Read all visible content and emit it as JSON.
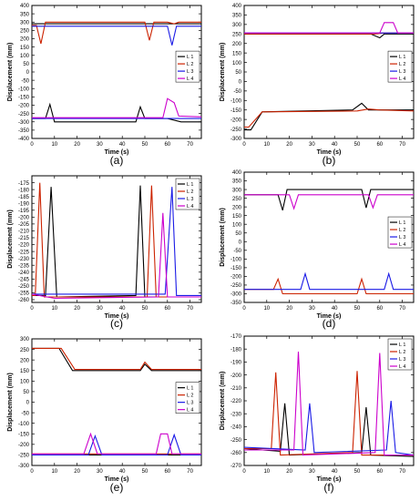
{
  "figure": {
    "legend_labels": [
      "L 1",
      "L 2",
      "L 3",
      "L 4"
    ],
    "series_colors": [
      "#000000",
      "#cc2200",
      "#1a1ae6",
      "#cc00cc"
    ]
  },
  "chart_data": [
    {
      "id": "a",
      "type": "line",
      "caption": "(a)",
      "xlabel": "Time (s)",
      "ylabel": "Displacement (mm)",
      "xlim": [
        0,
        75
      ],
      "ylim": [
        -400,
        400
      ],
      "xticks": [
        0,
        10,
        20,
        30,
        40,
        50,
        60,
        70
      ],
      "yticks": [
        400,
        350,
        300,
        250,
        200,
        150,
        100,
        50,
        0,
        -50,
        -100,
        -150,
        -200,
        -250,
        -300,
        -350,
        -400
      ],
      "legend_position": "right",
      "series": [
        {
          "name": "L 1",
          "values": [
            [
              0,
              290
            ],
            [
              75,
              290
            ],
            [
              null,
              null
            ],
            [
              0,
              -280
            ],
            [
              6,
              -280
            ],
            [
              8,
              -195
            ],
            [
              10,
              -300
            ],
            [
              46,
              -300
            ],
            [
              48,
              -210
            ],
            [
              50,
              -280
            ],
            [
              60,
              -280
            ],
            [
              66,
              -300
            ],
            [
              75,
              -300
            ]
          ]
        },
        {
          "name": "L 2",
          "values": [
            [
              0,
              280
            ],
            [
              2,
              280
            ],
            [
              4,
              170
            ],
            [
              6,
              300
            ],
            [
              48,
              300
            ],
            [
              50,
              300
            ],
            [
              52,
              190
            ],
            [
              54,
              300
            ],
            [
              60,
              300
            ],
            [
              63,
              290
            ],
            [
              65,
              300
            ],
            [
              75,
              300
            ]
          ]
        },
        {
          "name": "L 3",
          "values": [
            [
              0,
              275
            ],
            [
              60,
              275
            ],
            [
              62,
              160
            ],
            [
              64,
              275
            ],
            [
              75,
              275
            ],
            [
              null,
              null
            ],
            [
              0,
              -280
            ],
            [
              75,
              -280
            ]
          ]
        },
        {
          "name": "L 4",
          "values": [
            [
              0,
              -275
            ],
            [
              58,
              -275
            ],
            [
              60,
              -160
            ],
            [
              63,
              -185
            ],
            [
              65,
              -265
            ],
            [
              75,
              -270
            ]
          ]
        }
      ]
    },
    {
      "id": "b",
      "type": "line",
      "caption": "(b)",
      "xlabel": "Time (s)",
      "ylabel": "Displacement (mm)",
      "xlim": [
        0,
        75
      ],
      "ylim": [
        -300,
        400
      ],
      "xticks": [
        0,
        10,
        20,
        30,
        40,
        50,
        60,
        70
      ],
      "yticks": [
        400,
        350,
        300,
        250,
        200,
        150,
        100,
        50,
        0,
        -50,
        -100,
        -150,
        -200,
        -250,
        -300
      ],
      "legend_position": "right",
      "series": [
        {
          "name": "L 1",
          "values": [
            [
              0,
              -255
            ],
            [
              3,
              -255
            ],
            [
              8,
              -160
            ],
            [
              48,
              -150
            ],
            [
              52,
              -115
            ],
            [
              55,
              -150
            ],
            [
              75,
              -150
            ],
            [
              null,
              null
            ],
            [
              0,
              250
            ],
            [
              56,
              250
            ],
            [
              60,
              230
            ],
            [
              62,
              250
            ],
            [
              75,
              250
            ]
          ]
        },
        {
          "name": "L 2",
          "values": [
            [
              0,
              250
            ],
            [
              58,
              250
            ],
            [
              62,
              255
            ],
            [
              75,
              255
            ],
            [
              null,
              null
            ],
            [
              0,
              -240
            ],
            [
              2,
              -240
            ],
            [
              8,
              -160
            ],
            [
              50,
              -155
            ],
            [
              55,
              -145
            ],
            [
              60,
              -150
            ],
            [
              75,
              -155
            ]
          ]
        },
        {
          "name": "L 3",
          "values": [
            [
              0,
              255
            ],
            [
              75,
              255
            ]
          ]
        },
        {
          "name": "L 4",
          "values": [
            [
              0,
              255
            ],
            [
              60,
              255
            ],
            [
              62,
              310
            ],
            [
              66,
              310
            ],
            [
              68,
              255
            ],
            [
              75,
              255
            ]
          ]
        }
      ]
    },
    {
      "id": "c",
      "type": "line",
      "caption": "(c)",
      "xlabel": "Time (s)",
      "ylabel": "Displacement (mm)",
      "xlim": [
        0,
        75
      ],
      "ylim": [
        -262,
        -170
      ],
      "xticks": [
        0,
        10,
        20,
        30,
        40,
        50,
        60,
        70
      ],
      "yticks": [
        -175,
        -180,
        -185,
        -190,
        -195,
        -200,
        -205,
        -210,
        -215,
        -220,
        -225,
        -230,
        -235,
        -240,
        -245,
        -250,
        -255,
        -260
      ],
      "legend_position": "top-right",
      "series": [
        {
          "name": "L 1",
          "values": [
            [
              0,
              -257
            ],
            [
              6,
              -257
            ],
            [
              8.5,
              -178
            ],
            [
              11,
              -258
            ],
            [
              46,
              -257
            ],
            [
              48,
              -177
            ],
            [
              50,
              -258
            ],
            [
              75,
              -258
            ]
          ]
        },
        {
          "name": "L 2",
          "values": [
            [
              0,
              -257
            ],
            [
              1.5,
              -257
            ],
            [
              3.5,
              -175
            ],
            [
              5.5,
              -258
            ],
            [
              51,
              -258
            ],
            [
              53,
              -177
            ],
            [
              55,
              -258
            ],
            [
              75,
              -258
            ]
          ]
        },
        {
          "name": "L 3",
          "values": [
            [
              0,
              -256
            ],
            [
              59,
              -256
            ],
            [
              62,
              -178
            ],
            [
              64,
              -257
            ],
            [
              75,
              -257
            ]
          ]
        },
        {
          "name": "L 4",
          "values": [
            [
              0,
              -256
            ],
            [
              10,
              -259
            ],
            [
              56,
              -258
            ],
            [
              58,
              -197
            ],
            [
              60,
              -258
            ],
            [
              75,
              -258
            ]
          ]
        }
      ]
    },
    {
      "id": "d",
      "type": "line",
      "caption": "(d)",
      "xlabel": "Time (s)",
      "ylabel": "Displacement (mm)",
      "xlim": [
        0,
        75
      ],
      "ylim": [
        -350,
        400
      ],
      "xticks": [
        0,
        10,
        20,
        30,
        40,
        50,
        60,
        70
      ],
      "yticks": [
        400,
        350,
        300,
        250,
        200,
        150,
        100,
        50,
        0,
        -50,
        -100,
        -150,
        -200,
        -250,
        -300,
        -350
      ],
      "legend_position": "right",
      "series": [
        {
          "name": "L 1",
          "values": [
            [
              0,
              270
            ],
            [
              15,
              270
            ],
            [
              17,
              180
            ],
            [
              19,
              300
            ],
            [
              52,
              300
            ],
            [
              54,
              195
            ],
            [
              56,
              300
            ],
            [
              75,
              300
            ]
          ]
        },
        {
          "name": "L 2",
          "values": [
            [
              0,
              -275
            ],
            [
              13,
              -275
            ],
            [
              15,
              -215
            ],
            [
              17,
              -300
            ],
            [
              50,
              -300
            ],
            [
              52,
              -215
            ],
            [
              54,
              -300
            ],
            [
              75,
              -300
            ]
          ]
        },
        {
          "name": "L 3",
          "values": [
            [
              0,
              -275
            ],
            [
              25,
              -275
            ],
            [
              27,
              -185
            ],
            [
              29,
              -275
            ],
            [
              62,
              -275
            ],
            [
              64,
              -185
            ],
            [
              66,
              -275
            ],
            [
              75,
              -275
            ]
          ]
        },
        {
          "name": "L 4",
          "values": [
            [
              0,
              270
            ],
            [
              20,
              270
            ],
            [
              22,
              190
            ],
            [
              24,
              270
            ],
            [
              55,
              270
            ],
            [
              57,
              195
            ],
            [
              59,
              270
            ],
            [
              75,
              270
            ]
          ]
        }
      ]
    },
    {
      "id": "e",
      "type": "line",
      "caption": "(e)",
      "xlabel": "Time (s)",
      "ylabel": "Displacement (mm)",
      "xlim": [
        0,
        75
      ],
      "ylim": [
        -300,
        300
      ],
      "xticks": [
        0,
        10,
        20,
        30,
        40,
        50,
        60,
        70
      ],
      "yticks": [
        300,
        250,
        200,
        150,
        100,
        50,
        0,
        -50,
        -100,
        -150,
        -200,
        -250,
        -300
      ],
      "legend_position": "right",
      "series": [
        {
          "name": "L 1",
          "values": [
            [
              0,
              255
            ],
            [
              12,
              255
            ],
            [
              18,
              150
            ],
            [
              48,
              150
            ],
            [
              50,
              180
            ],
            [
              53,
              150
            ],
            [
              75,
              150
            ],
            [
              null,
              null
            ],
            [
              0,
              -250
            ],
            [
              75,
              -250
            ]
          ]
        },
        {
          "name": "L 2",
          "values": [
            [
              0,
              255
            ],
            [
              13,
              255
            ],
            [
              19,
              155
            ],
            [
              48,
              155
            ],
            [
              50,
              190
            ],
            [
              53,
              155
            ],
            [
              75,
              155
            ],
            [
              null,
              null
            ],
            [
              0,
              -245
            ],
            [
              75,
              -245
            ]
          ]
        },
        {
          "name": "L 3",
          "values": [
            [
              0,
              -250
            ],
            [
              25,
              -250
            ],
            [
              28,
              -160
            ],
            [
              31,
              -250
            ],
            [
              60,
              -250
            ],
            [
              63,
              -155
            ],
            [
              66,
              -250
            ],
            [
              75,
              -250
            ]
          ]
        },
        {
          "name": "L 4",
          "values": [
            [
              0,
              -245
            ],
            [
              23,
              -245
            ],
            [
              26,
              -150
            ],
            [
              29,
              -245
            ],
            [
              55,
              -245
            ],
            [
              57,
              -150
            ],
            [
              60,
              -150
            ],
            [
              62,
              -245
            ],
            [
              75,
              -245
            ]
          ]
        }
      ]
    },
    {
      "id": "f",
      "type": "line",
      "caption": "(f)",
      "xlabel": "Time (s)",
      "ylabel": "Displacement (mm)",
      "xlim": [
        0,
        75
      ],
      "ylim": [
        -270,
        -170
      ],
      "xticks": [
        0,
        10,
        20,
        30,
        40,
        50,
        60,
        70
      ],
      "yticks": [
        -170,
        -180,
        -190,
        -200,
        -210,
        -220,
        -230,
        -240,
        -250,
        -260,
        -270
      ],
      "legend_position": "top-right",
      "series": [
        {
          "name": "L 1",
          "values": [
            [
              0,
              -257
            ],
            [
              16,
              -259
            ],
            [
              18,
              -222
            ],
            [
              20,
              -262
            ],
            [
              52,
              -260
            ],
            [
              54,
              -225
            ],
            [
              56,
              -262
            ],
            [
              75,
              -263
            ]
          ]
        },
        {
          "name": "L 2",
          "values": [
            [
              0,
              -257
            ],
            [
              12,
              -257
            ],
            [
              14,
              -198
            ],
            [
              16,
              -262
            ],
            [
              48,
              -260
            ],
            [
              50,
              -197
            ],
            [
              52,
              -262
            ],
            [
              75,
              -262
            ]
          ]
        },
        {
          "name": "L 3",
          "values": [
            [
              0,
              -256
            ],
            [
              27,
              -258
            ],
            [
              29,
              -222
            ],
            [
              31,
              -260
            ],
            [
              63,
              -258
            ],
            [
              65,
              -220
            ],
            [
              67,
              -260
            ],
            [
              75,
              -262
            ]
          ]
        },
        {
          "name": "L 4",
          "values": [
            [
              0,
              -258
            ],
            [
              22,
              -258
            ],
            [
              24,
              -182
            ],
            [
              26,
              -262
            ],
            [
              58,
              -260
            ],
            [
              60,
              -183
            ],
            [
              62,
              -262
            ],
            [
              75,
              -262
            ]
          ]
        }
      ]
    }
  ]
}
